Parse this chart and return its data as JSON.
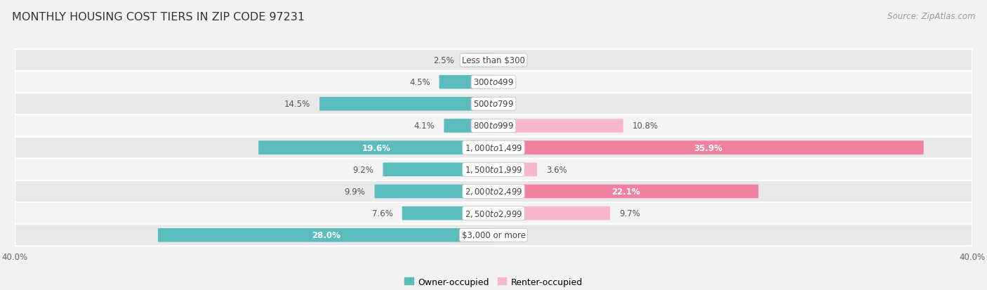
{
  "title": "MONTHLY HOUSING COST TIERS IN ZIP CODE 97231",
  "source": "Source: ZipAtlas.com",
  "categories": [
    "Less than $300",
    "$300 to $499",
    "$500 to $799",
    "$800 to $999",
    "$1,000 to $1,499",
    "$1,500 to $1,999",
    "$2,000 to $2,499",
    "$2,500 to $2,999",
    "$3,000 or more"
  ],
  "owner_values": [
    2.5,
    4.5,
    14.5,
    4.1,
    19.6,
    9.2,
    9.9,
    7.6,
    28.0
  ],
  "renter_values": [
    0.0,
    0.0,
    0.0,
    10.8,
    35.9,
    3.6,
    22.1,
    9.7,
    0.0
  ],
  "owner_color": "#5bbcbd",
  "renter_color": "#f080a0",
  "renter_color_light": "#f8b8cc",
  "axis_max": 40.0,
  "bg_dark": "#e8e8e8",
  "bg_light": "#f4f4f4",
  "title_fontsize": 11.5,
  "label_fontsize": 8.5,
  "source_fontsize": 8.5,
  "axis_label_fontsize": 8.5,
  "cat_label_fontsize": 8.5
}
